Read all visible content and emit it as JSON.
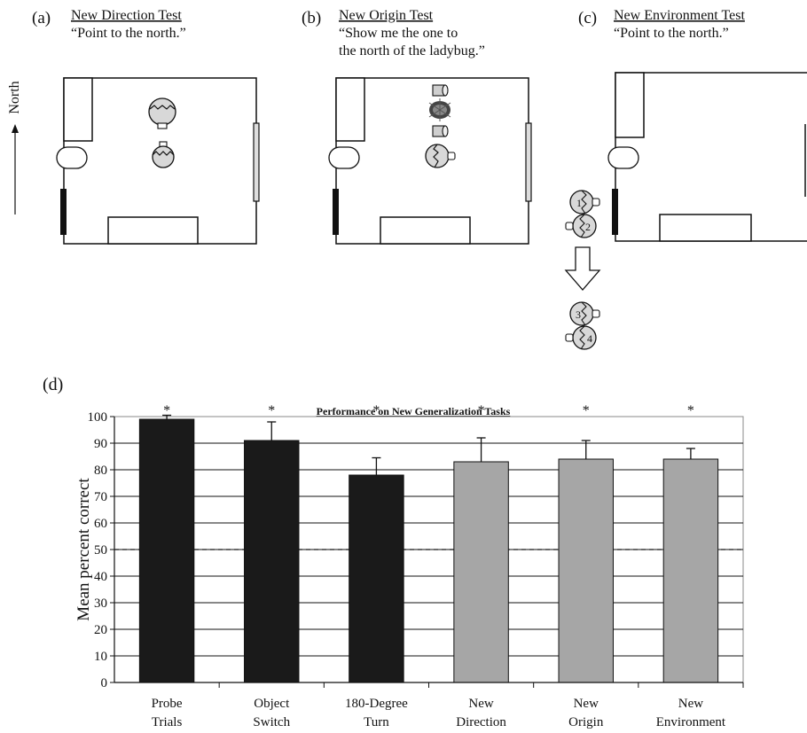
{
  "panels": {
    "a": {
      "letter": "(a)",
      "title": "New Direction Test",
      "instruction": "“Point to the north.”"
    },
    "b": {
      "letter": "(b)",
      "title": "New Origin Test",
      "instruction_line1": "“Show me the one to",
      "instruction_line2": "the north of the ladybug.”"
    },
    "c": {
      "letter": "(c)",
      "title": "New Environment Test",
      "instruction": "“Point to the north.”",
      "markers": [
        "1",
        "2",
        "3",
        "4"
      ]
    },
    "d": {
      "letter": "(d)"
    }
  },
  "compass_label": "North",
  "colors": {
    "dark_bar": "#1a1a1a",
    "gray_bar": "#a6a6a6",
    "marker_fill": "#cfcfcf"
  },
  "chart_data": {
    "type": "bar",
    "title": "Performance on New Generalization Tasks",
    "ylabel": "Mean percent correct",
    "xlabel": "",
    "ylim": [
      0,
      100
    ],
    "yticks": [
      0,
      10,
      20,
      30,
      40,
      50,
      60,
      70,
      80,
      90,
      100
    ],
    "grid": true,
    "chance_line": 50,
    "categories": [
      [
        "Probe",
        "Trials"
      ],
      [
        "Object",
        "Switch"
      ],
      [
        "180-Degree",
        "Turn"
      ],
      [
        "New",
        "Direction"
      ],
      [
        "New",
        "Origin"
      ],
      [
        "New",
        "Environment"
      ]
    ],
    "values": [
      99,
      91,
      78,
      83,
      84,
      84
    ],
    "errors": [
      1.5,
      7,
      6.5,
      9,
      7,
      4
    ],
    "fill": [
      "dark",
      "dark",
      "dark",
      "gray",
      "gray",
      "gray"
    ],
    "significance": [
      "*",
      "*",
      "*",
      "*",
      "*",
      "*"
    ]
  }
}
